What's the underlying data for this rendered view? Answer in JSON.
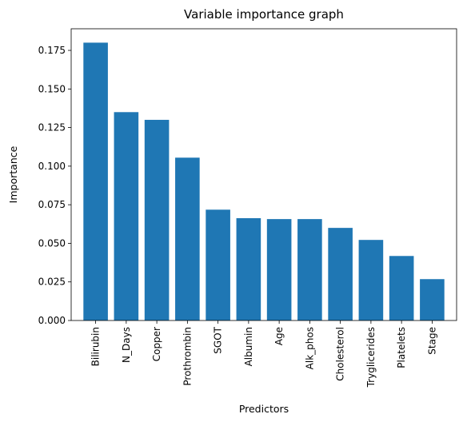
{
  "chart_data": {
    "type": "bar",
    "title": "Variable importance graph",
    "xlabel": "Predictors",
    "ylabel": "Importance",
    "categories": [
      "Bilirubin",
      "N_Days",
      "Copper",
      "Prothrombin",
      "SGOT",
      "Albumin",
      "Age",
      "Alk_phos",
      "Cholesterol",
      "Tryglicerides",
      "Platelets",
      "Stage"
    ],
    "values": [
      0.18,
      0.135,
      0.13,
      0.1055,
      0.0718,
      0.0663,
      0.0657,
      0.0657,
      0.06,
      0.0522,
      0.0418,
      0.0268
    ],
    "ylim": [
      0,
      0.189
    ],
    "yticks": [
      0.0,
      0.025,
      0.05,
      0.075,
      0.1,
      0.125,
      0.15,
      0.175
    ],
    "ytick_labels": [
      "0.000",
      "0.025",
      "0.050",
      "0.075",
      "0.100",
      "0.125",
      "0.150",
      "0.175"
    ],
    "bar_color": "#1f77b4",
    "grid": false,
    "legend": "none"
  }
}
